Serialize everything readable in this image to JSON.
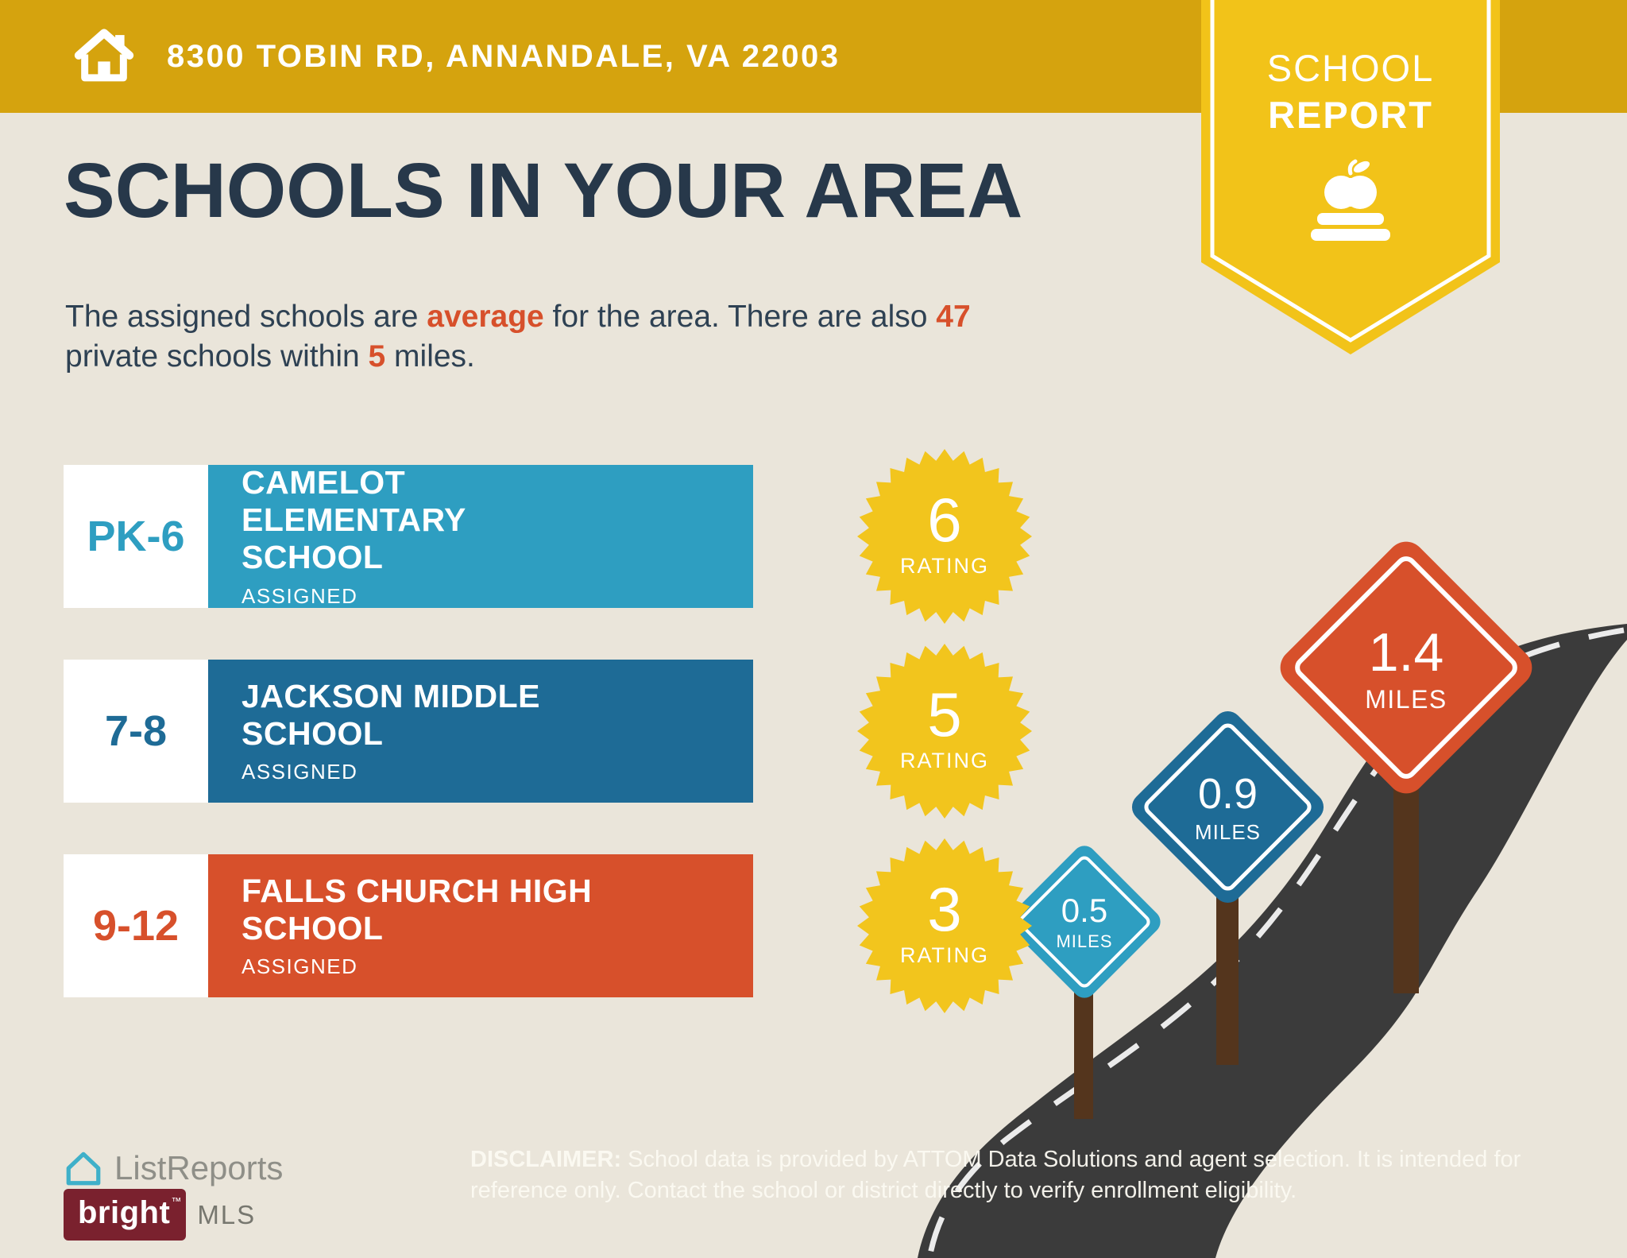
{
  "header": {
    "address": "8300 TOBIN RD, ANNANDALE, VA 22003"
  },
  "ribbon": {
    "line1": "SCHOOL",
    "line2": "REPORT"
  },
  "main": {
    "title": "SCHOOLS IN YOUR AREA",
    "subtitle": {
      "p1": "The assigned schools are ",
      "highlight1": "average",
      "p2": " for the area. There are also ",
      "highlight2": "47",
      "p3": "private schools within ",
      "highlight3": "5",
      "p4": " miles."
    }
  },
  "schools": [
    {
      "grade": "PK-6",
      "name": "CAMELOT ELEMENTARY SCHOOL",
      "assigned": "ASSIGNED",
      "rating": "6",
      "rating_label": "RATING",
      "color": "#2E9EC1"
    },
    {
      "grade": "7-8",
      "name": "JACKSON MIDDLE SCHOOL",
      "assigned": "ASSIGNED",
      "rating": "5",
      "rating_label": "RATING",
      "color": "#1E6B96"
    },
    {
      "grade": "9-12",
      "name": "FALLS CHURCH HIGH SCHOOL",
      "assigned": "ASSIGNED",
      "rating": "3",
      "rating_label": "RATING",
      "color": "#D7502B"
    }
  ],
  "signs": [
    {
      "distance": "0.5",
      "unit": "MILES",
      "color": "#2E9EC1"
    },
    {
      "distance": "0.9",
      "unit": "MILES",
      "color": "#1E6B96"
    },
    {
      "distance": "1.4",
      "unit": "MILES",
      "color": "#D7502B"
    }
  ],
  "footer": {
    "brand": "ListReports",
    "disclaimer_label": "DISCLAIMER:",
    "disclaimer_text": " School data is provided by ATTOM Data Solutions and agent selection. It is intended for reference only. Contact the school or district directly to verify enrollment eligibility.",
    "mls_brand": "bright",
    "mls_tm": "™",
    "mls_suffix": "MLS"
  },
  "colors": {
    "header_gold": "#D5A30E",
    "ribbon_yellow": "#F2C319",
    "background": "#EAE5DA",
    "navy": "#27384A",
    "accent_orange": "#D7502B",
    "teal": "#2E9EC1",
    "blue": "#1E6B96",
    "red": "#D7502B",
    "road": "#3B3B3B",
    "post_brown": "#54351D",
    "starburst": "#F2C51D",
    "maroon": "#7A212E"
  }
}
